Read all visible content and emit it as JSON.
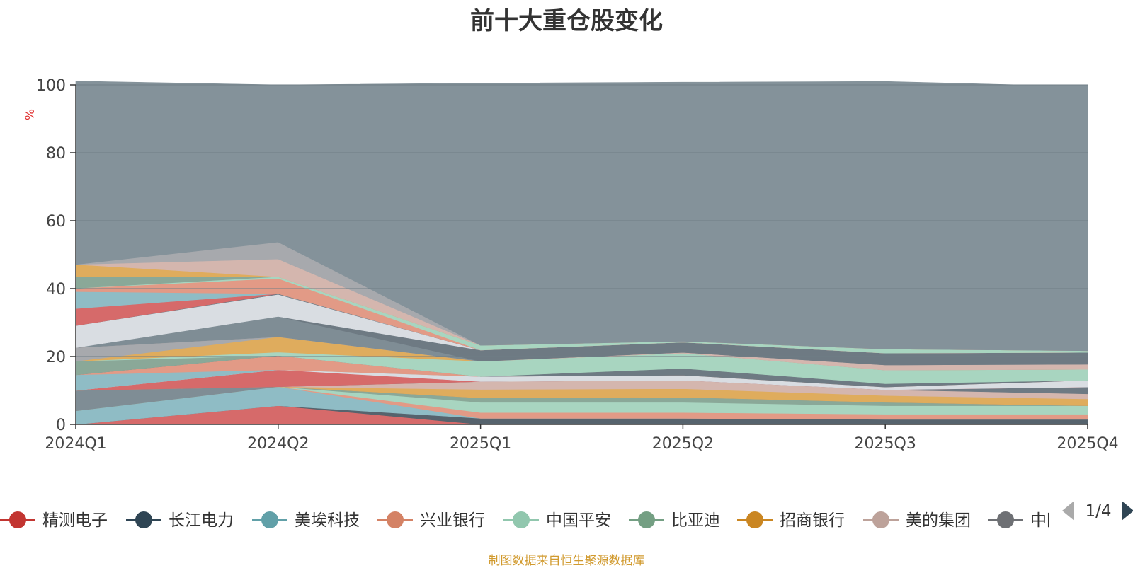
{
  "title": "前十大重仓股变化",
  "source_note": "制图数据来自恒生聚源数据库",
  "legend_page": "1/4",
  "colors": {
    "plot_bg": "#84929a",
    "axis": "#333333",
    "grid": "#6f7d85",
    "unit": "#e03030"
  },
  "chart_data": {
    "type": "area",
    "stacked": true,
    "x": [
      "2024Q1",
      "2024Q2",
      "2025Q1",
      "2025Q2",
      "2025Q3",
      "2025Q4"
    ],
    "ylim": [
      0,
      100
    ],
    "yticks": [
      0,
      20,
      40,
      60,
      80,
      100
    ],
    "ylabel": "%",
    "grid": true,
    "legend_position": "bottom",
    "series": [
      {
        "color": "#d66a6a",
        "values": [
          0.0,
          5.5,
          0.0,
          0.0,
          0.0,
          0.0
        ]
      },
      {
        "color": "#56636d",
        "values": [
          0.0,
          0.0,
          1.8,
          1.8,
          1.5,
          1.5
        ]
      },
      {
        "color": "#8fbcc5",
        "values": [
          4.0,
          5.6,
          0.0,
          0.0,
          0.0,
          0.0
        ]
      },
      {
        "color": "#e29a86",
        "values": [
          0.0,
          0.0,
          1.7,
          1.7,
          1.5,
          1.5
        ]
      },
      {
        "color": "#a8d5c0",
        "values": [
          0.0,
          0.0,
          3.0,
          3.0,
          2.5,
          2.5
        ]
      },
      {
        "color": "#8aa898",
        "values": [
          0.0,
          0.0,
          1.3,
          1.5,
          1.0,
          0.0
        ]
      },
      {
        "color": "#7f8d95",
        "values": [
          6.0,
          0.0,
          0.0,
          0.0,
          0.0,
          0.0
        ]
      },
      {
        "color": "#dfac5d",
        "values": [
          0.0,
          0.0,
          2.5,
          2.5,
          2.0,
          2.0
        ]
      },
      {
        "color": "#d4b6ae",
        "values": [
          0.0,
          0.0,
          2.3,
          2.5,
          1.7,
          1.5
        ]
      },
      {
        "color": "#6e7a83",
        "values": [
          0.0,
          0.0,
          0.0,
          0.0,
          0.0,
          2.0
        ]
      },
      {
        "color": "#d66a6a",
        "values": [
          0.0,
          5.0,
          0.0,
          0.0,
          0.0,
          0.0
        ]
      },
      {
        "color": "#d9dde2",
        "values": [
          0.0,
          0.0,
          1.5,
          1.5,
          0.8,
          2.0
        ]
      },
      {
        "color": "#8fbcc5",
        "values": [
          4.6,
          0.0,
          0.0,
          0.0,
          0.0,
          0.0
        ]
      },
      {
        "color": "#e29a86",
        "values": [
          0.0,
          4.2,
          0.0,
          0.0,
          0.0,
          0.0
        ]
      },
      {
        "color": "#6e7a83",
        "values": [
          0.0,
          0.0,
          0.0,
          2.0,
          1.0,
          0.0
        ]
      },
      {
        "color": "#8aa898",
        "values": [
          4.0,
          0.0,
          0.0,
          0.0,
          0.0,
          0.0
        ]
      },
      {
        "color": "#a8d5c0",
        "values": [
          0.0,
          1.0,
          4.5,
          4.5,
          4.0,
          3.2
        ]
      },
      {
        "color": "#dfac5d",
        "values": [
          0.0,
          4.5,
          0.0,
          0.0,
          0.0,
          0.0
        ]
      },
      {
        "color": "#a7a9ad",
        "values": [
          4.0,
          0.0,
          0.0,
          0.0,
          0.0,
          0.0
        ]
      },
      {
        "color": "#d4b6ae",
        "values": [
          0.0,
          0.0,
          0.0,
          0.2,
          1.5,
          1.5
        ]
      },
      {
        "color": "#7f8d95",
        "values": [
          0.0,
          6.0,
          0.0,
          0.0,
          0.0,
          0.0
        ]
      },
      {
        "color": "#6e7a83",
        "values": [
          0.0,
          0.0,
          3.3,
          3.0,
          3.5,
          3.5
        ]
      },
      {
        "color": "#d9dde2",
        "values": [
          6.5,
          6.5,
          0.0,
          0.0,
          0.0,
          0.0
        ]
      },
      {
        "color": "#6e7a83",
        "values": [
          0.0,
          0.2,
          0.0,
          0.0,
          0.0,
          0.0
        ]
      },
      {
        "color": "#d66a6a",
        "values": [
          5.0,
          0.0,
          0.0,
          0.0,
          0.0,
          0.0
        ]
      },
      {
        "color": "#8fbcc5",
        "values": [
          5.0,
          0.0,
          0.0,
          0.0,
          0.0,
          0.0
        ]
      },
      {
        "color": "#e29a86",
        "values": [
          1.0,
          4.5,
          0.0,
          0.0,
          0.0,
          0.0
        ]
      },
      {
        "color": "#a8d5c0",
        "values": [
          0.0,
          0.5,
          1.4,
          0.3,
          1.2,
          0.5
        ]
      },
      {
        "color": "#8aa898",
        "values": [
          3.5,
          0.0,
          0.0,
          0.0,
          0.0,
          0.0
        ]
      },
      {
        "color": "#dfac5d",
        "values": [
          3.5,
          0.0,
          0.0,
          0.0,
          0.0,
          0.0
        ]
      },
      {
        "color": "#d4b6ae",
        "values": [
          0.0,
          5.2,
          0.0,
          0.0,
          0.0,
          0.0
        ]
      },
      {
        "color": "#a7a9ad",
        "values": [
          0.0,
          5.0,
          0.0,
          0.0,
          0.0,
          0.0
        ]
      },
      {
        "color": "#84929a",
        "values": [
          54.0,
          46.3,
          77.2,
          76.3,
          78.8,
          77.8
        ]
      }
    ],
    "legend": [
      {
        "name": "精测电子",
        "color": "#c23531"
      },
      {
        "name": "长江电力",
        "color": "#2f4554"
      },
      {
        "name": "美埃科技",
        "color": "#61a0a8"
      },
      {
        "name": "兴业银行",
        "color": "#d48265"
      },
      {
        "name": "中国平安",
        "color": "#91c7ae"
      },
      {
        "name": "比亚迪",
        "color": "#749f83"
      },
      {
        "name": "招商银行",
        "color": "#ca8622"
      },
      {
        "name": "美的集团",
        "color": "#bda29a"
      },
      {
        "name": "中国",
        "color": "#6e7074"
      }
    ]
  }
}
